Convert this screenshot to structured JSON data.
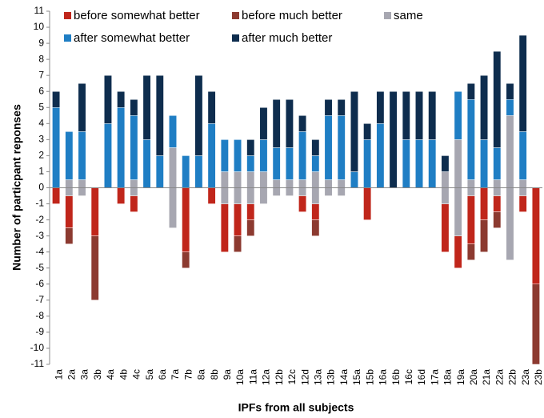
{
  "chart_data": {
    "type": "diverging-stacked-bar",
    "x_label": "IPFs from all subjects",
    "y_label": "Number of particpant reponses",
    "categories": [
      "1a",
      "2a",
      "3a",
      "3b",
      "4a",
      "4b",
      "4c",
      "5a",
      "6a",
      "7a",
      "7b",
      "8a",
      "8b",
      "9a",
      "10a",
      "11a",
      "12a",
      "12b",
      "12c",
      "12d",
      "13a",
      "13b",
      "14a",
      "15a",
      "15b",
      "16a",
      "16b",
      "16c",
      "16d",
      "17a",
      "18a",
      "19a",
      "20a",
      "21a",
      "22a",
      "22b",
      "23a",
      "23b"
    ],
    "series": [
      {
        "name": "before somewhat better",
        "color": "#c0261b",
        "stack": "below",
        "values": [
          -1,
          -2,
          0,
          -3,
          0,
          -1,
          -1,
          0,
          0,
          0,
          -4,
          0,
          -1,
          -3,
          -2,
          -1,
          0,
          0,
          0,
          -1,
          -1,
          0,
          0,
          0,
          -2,
          0,
          0,
          0,
          0,
          0,
          -3,
          -2,
          -3,
          -2,
          -1,
          0,
          -1,
          -6
        ]
      },
      {
        "name": "before much better",
        "color": "#8c3a30",
        "stack": "below",
        "values": [
          0,
          -1,
          0,
          -4,
          0,
          0,
          0,
          0,
          0,
          0,
          -1,
          0,
          0,
          0,
          -1,
          -1,
          0,
          0,
          0,
          0,
          -1,
          0,
          0,
          0,
          0,
          0,
          0,
          0,
          0,
          0,
          0,
          0,
          -1,
          -2,
          -1,
          0,
          0,
          -5
        ]
      },
      {
        "name": "same",
        "color": "#a7a7b1",
        "stack": "centered",
        "values": [
          0,
          1,
          1,
          0,
          0,
          0,
          1,
          0,
          0,
          5,
          0,
          0,
          0,
          2,
          2,
          2,
          2,
          1,
          1,
          1,
          2,
          1,
          1,
          0,
          0,
          0,
          0,
          0,
          0,
          0,
          2,
          6,
          1,
          0,
          1,
          9,
          1,
          0
        ]
      },
      {
        "name": "after somewhat better",
        "color": "#1f7ec4",
        "stack": "above",
        "values": [
          5,
          3,
          3,
          0,
          4,
          5,
          4,
          3,
          2,
          2,
          2,
          2,
          4,
          2,
          2,
          1,
          2,
          2,
          2,
          3,
          1,
          4,
          4,
          1,
          3,
          4,
          0,
          3,
          3,
          3,
          0,
          3,
          5,
          3,
          2,
          1,
          3,
          0
        ]
      },
      {
        "name": "after much better",
        "color": "#0e2d4e",
        "stack": "above",
        "values": [
          1,
          0,
          3,
          0,
          3,
          1,
          1,
          4,
          5,
          0,
          0,
          5,
          2,
          0,
          0,
          1,
          2,
          3,
          3,
          1,
          1,
          1,
          1,
          5,
          1,
          2,
          6,
          3,
          3,
          3,
          1,
          0,
          1,
          4,
          6,
          1,
          6,
          0
        ]
      }
    ],
    "ylim": [
      -11,
      11
    ],
    "yticks": [
      -11,
      -10,
      -9,
      -8,
      -7,
      -6,
      -5,
      -4,
      -3,
      -2,
      -1,
      0,
      1,
      2,
      3,
      4,
      5,
      6,
      7,
      8,
      9,
      10,
      11
    ],
    "grid": false,
    "legend": "upper-left"
  }
}
